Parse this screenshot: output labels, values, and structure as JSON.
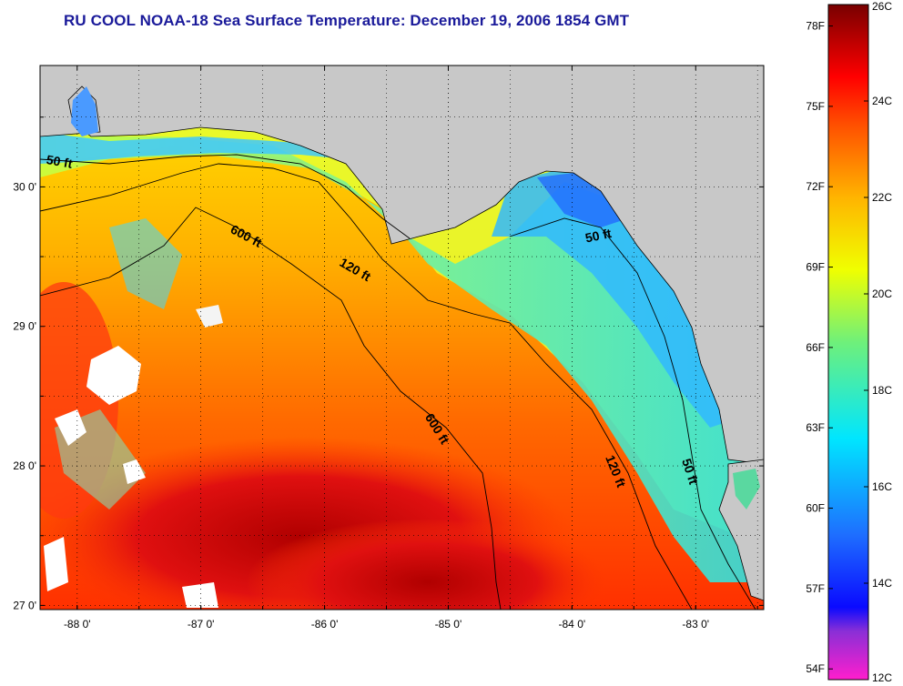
{
  "title": "RU COOL  NOAA-18  Sea Surface Temperature:  December 19, 2006 1854 GMT",
  "map": {
    "lon_range": [
      -88.3,
      -82.45
    ],
    "lat_range": [
      26.97,
      30.87
    ],
    "lon_ticks": [
      {
        "value": -88,
        "label": "-88 0'"
      },
      {
        "value": -87,
        "label": "-87 0'"
      },
      {
        "value": -86,
        "label": "-86 0'"
      },
      {
        "value": -85,
        "label": "-85 0'"
      },
      {
        "value": -84,
        "label": "-84 0'"
      },
      {
        "value": -83,
        "label": "-83 0'"
      }
    ],
    "lat_ticks": [
      {
        "value": 27,
        "label": "27 0'"
      },
      {
        "value": 28,
        "label": "28 0'"
      },
      {
        "value": 29,
        "label": "29 0'"
      },
      {
        "value": 30,
        "label": "30 0'"
      }
    ],
    "contour_labels": [
      {
        "text": "50 ft",
        "lon": -88.15,
        "lat": 30.15,
        "rotate": 10
      },
      {
        "text": "600 ft",
        "lon": -86.65,
        "lat": 29.62,
        "rotate": 28
      },
      {
        "text": "120 ft",
        "lon": -85.77,
        "lat": 29.38,
        "rotate": 30
      },
      {
        "text": "50 ft",
        "lon": -83.78,
        "lat": 29.62,
        "rotate": -12
      },
      {
        "text": "600 ft",
        "lon": -85.12,
        "lat": 28.25,
        "rotate": 58
      },
      {
        "text": "120 ft",
        "lon": -83.68,
        "lat": 27.95,
        "rotate": 68
      },
      {
        "text": "50 ft",
        "lon": -83.08,
        "lat": 27.95,
        "rotate": 72
      }
    ],
    "colors": {
      "land": "#c8c8c8",
      "contour": "#000000"
    }
  },
  "colorbar": {
    "labels_f": [
      "78F",
      "75F",
      "72F",
      "69F",
      "66F",
      "63F",
      "60F",
      "57F",
      "54F"
    ],
    "labels_c": [
      "26C",
      "24C",
      "22C",
      "20C",
      "18C",
      "16C",
      "14C",
      "12C"
    ],
    "range_c": [
      12,
      26
    ],
    "stops": [
      {
        "c": 12,
        "color": "#ff1ecd"
      },
      {
        "c": 13,
        "color": "#8b2fd6"
      },
      {
        "c": 13.5,
        "color": "#0a0aff"
      },
      {
        "c": 15,
        "color": "#1e6eff"
      },
      {
        "c": 17,
        "color": "#00e6ff"
      },
      {
        "c": 19,
        "color": "#6ff07a"
      },
      {
        "c": 20.5,
        "color": "#f0ff00"
      },
      {
        "c": 22,
        "color": "#ffb400"
      },
      {
        "c": 23.5,
        "color": "#ff5000"
      },
      {
        "c": 24.5,
        "color": "#ff0000"
      },
      {
        "c": 26,
        "color": "#780000"
      }
    ]
  }
}
